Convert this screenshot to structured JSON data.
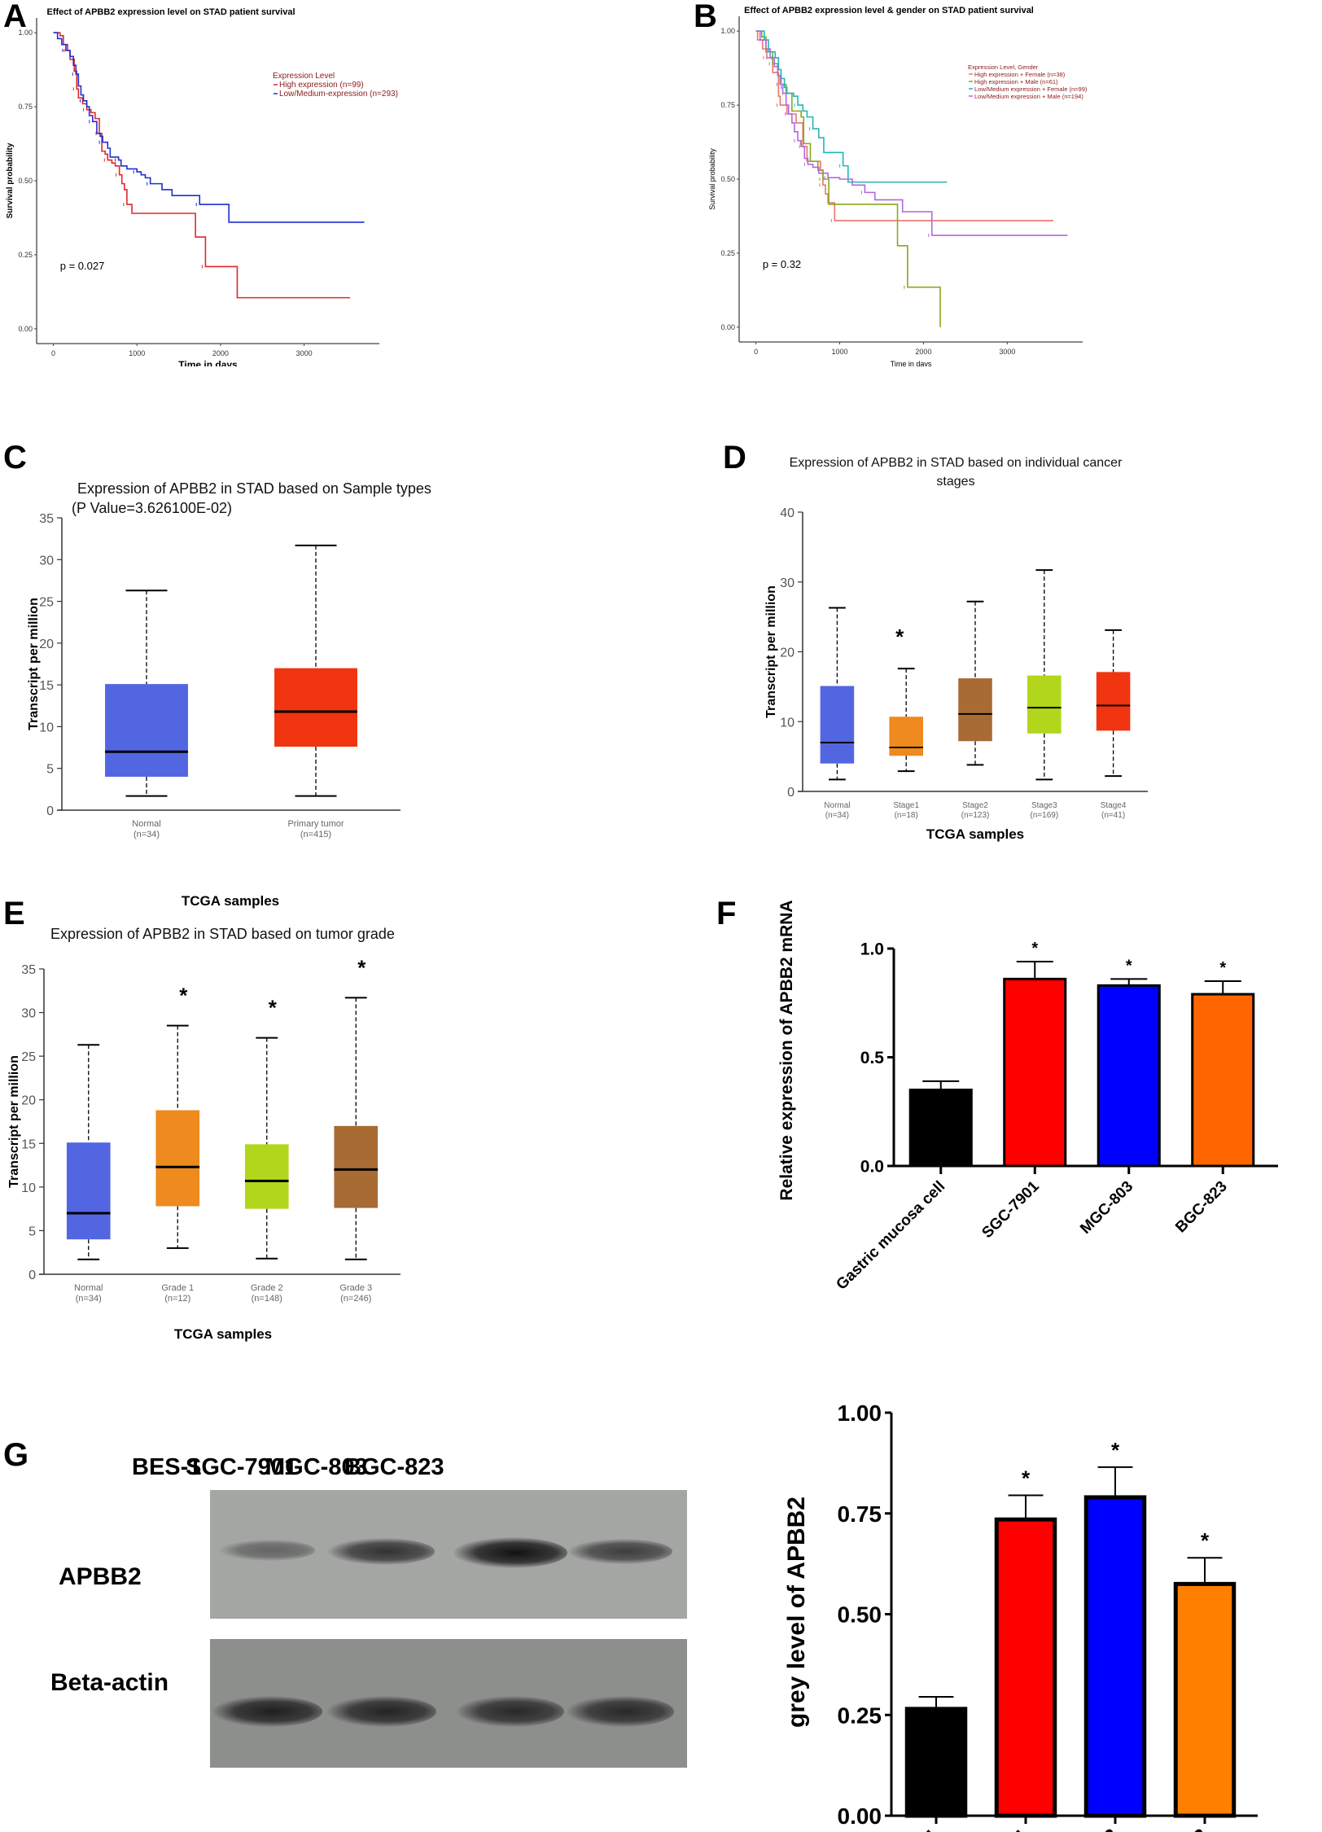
{
  "panels": {
    "A": "A",
    "B": "B",
    "C": "C",
    "D": "D",
    "E": "E",
    "F": "F",
    "G": "G"
  },
  "chart_data": [
    {
      "id": "A",
      "type": "line",
      "subtype": "kaplan-meier",
      "title": "Effect of APBB2 expression level on STAD patient survival",
      "xlabel": "Time in days",
      "ylabel": "Survival probability",
      "xlim": [
        -200,
        3900
      ],
      "ylim": [
        -0.05,
        1.05
      ],
      "xticks": [
        0,
        1000,
        2000,
        3000
      ],
      "yticks": [
        "0.00",
        "0.25",
        "0.50",
        "0.75",
        "1.00"
      ],
      "annotation": "p = 0.027",
      "legend_title": "Expression Level",
      "legend_position": "top-right",
      "series": [
        {
          "name": "High expression (n=99)",
          "color": "#e0282d",
          "steps": [
            [
              0,
              1.0
            ],
            [
              80,
              0.99
            ],
            [
              120,
              0.96
            ],
            [
              170,
              0.94
            ],
            [
              200,
              0.91
            ],
            [
              250,
              0.87
            ],
            [
              280,
              0.81
            ],
            [
              300,
              0.78
            ],
            [
              350,
              0.76
            ],
            [
              400,
              0.74
            ],
            [
              450,
              0.73
            ],
            [
              500,
              0.71
            ],
            [
              550,
              0.66
            ],
            [
              580,
              0.6
            ],
            [
              620,
              0.59
            ],
            [
              650,
              0.57
            ],
            [
              700,
              0.56
            ],
            [
              740,
              0.55
            ],
            [
              790,
              0.52
            ],
            [
              820,
              0.49
            ],
            [
              850,
              0.47
            ],
            [
              880,
              0.42
            ],
            [
              940,
              0.39
            ],
            [
              1700,
              0.31
            ],
            [
              1820,
              0.21
            ],
            [
              2200,
              0.105
            ],
            [
              3550,
              0.105
            ]
          ]
        },
        {
          "name": "Low/Medium-expression (n=293)",
          "color": "#1f2fd0",
          "steps": [
            [
              0,
              1.0
            ],
            [
              50,
              0.98
            ],
            [
              100,
              0.96
            ],
            [
              150,
              0.94
            ],
            [
              200,
              0.92
            ],
            [
              240,
              0.89
            ],
            [
              270,
              0.86
            ],
            [
              300,
              0.82
            ],
            [
              330,
              0.79
            ],
            [
              360,
              0.77
            ],
            [
              400,
              0.75
            ],
            [
              430,
              0.72
            ],
            [
              470,
              0.7
            ],
            [
              520,
              0.66
            ],
            [
              560,
              0.65
            ],
            [
              590,
              0.63
            ],
            [
              650,
              0.61
            ],
            [
              680,
              0.58
            ],
            [
              780,
              0.57
            ],
            [
              810,
              0.55
            ],
            [
              880,
              0.54
            ],
            [
              1000,
              0.53
            ],
            [
              1050,
              0.52
            ],
            [
              1100,
              0.51
            ],
            [
              1160,
              0.49
            ],
            [
              1300,
              0.47
            ],
            [
              1420,
              0.45
            ],
            [
              1750,
              0.42
            ],
            [
              2100,
              0.36
            ],
            [
              3720,
              0.36
            ]
          ]
        }
      ]
    },
    {
      "id": "B",
      "type": "line",
      "subtype": "kaplan-meier",
      "title": "Effect of APBB2 expression level & gender on STAD patient survival",
      "xlabel": "Time in days",
      "ylabel": "Survival probability",
      "xlim": [
        -200,
        3900
      ],
      "ylim": [
        -0.05,
        1.05
      ],
      "xticks": [
        0,
        1000,
        2000,
        3000
      ],
      "yticks": [
        "0.00",
        "0.25",
        "0.50",
        "0.75",
        "1.00"
      ],
      "annotation": "p = 0.32",
      "legend_title": "Expression Level, Gender",
      "legend_position": "top-right",
      "series": [
        {
          "name": "High expression + Female (n=38)",
          "color": "#e8766f",
          "steps": [
            [
              0,
              1.0
            ],
            [
              20,
              0.97
            ],
            [
              80,
              0.94
            ],
            [
              130,
              0.91
            ],
            [
              200,
              0.86
            ],
            [
              270,
              0.78
            ],
            [
              290,
              0.75
            ],
            [
              370,
              0.72
            ],
            [
              480,
              0.69
            ],
            [
              560,
              0.61
            ],
            [
              610,
              0.56
            ],
            [
              770,
              0.53
            ],
            [
              800,
              0.48
            ],
            [
              830,
              0.45
            ],
            [
              860,
              0.42
            ],
            [
              940,
              0.36
            ],
            [
              3550,
              0.36
            ]
          ]
        },
        {
          "name": "High expression + Male (n=61)",
          "color": "#8aa81c",
          "steps": [
            [
              0,
              1.0
            ],
            [
              70,
              0.98
            ],
            [
              120,
              0.93
            ],
            [
              200,
              0.89
            ],
            [
              260,
              0.85
            ],
            [
              300,
              0.82
            ],
            [
              360,
              0.79
            ],
            [
              430,
              0.73
            ],
            [
              540,
              0.71
            ],
            [
              570,
              0.62
            ],
            [
              650,
              0.56
            ],
            [
              740,
              0.53
            ],
            [
              800,
              0.5
            ],
            [
              870,
              0.415
            ],
            [
              1690,
              0.275
            ],
            [
              1810,
              0.135
            ],
            [
              2200,
              0.135
            ],
            [
              2200,
              0.0
            ]
          ]
        },
        {
          "name": "Low/Medium expression + Female (n=99)",
          "color": "#1eb8b7",
          "steps": [
            [
              0,
              1.0
            ],
            [
              100,
              0.97
            ],
            [
              150,
              0.93
            ],
            [
              230,
              0.91
            ],
            [
              270,
              0.87
            ],
            [
              300,
              0.84
            ],
            [
              340,
              0.81
            ],
            [
              370,
              0.79
            ],
            [
              450,
              0.78
            ],
            [
              500,
              0.75
            ],
            [
              560,
              0.73
            ],
            [
              610,
              0.71
            ],
            [
              680,
              0.67
            ],
            [
              750,
              0.64
            ],
            [
              810,
              0.59
            ],
            [
              1040,
              0.545
            ],
            [
              1100,
              0.49
            ],
            [
              2280,
              0.49
            ]
          ]
        },
        {
          "name": "Low/Medium expression + Male (n=194)",
          "color": "#b466e0",
          "steps": [
            [
              0,
              1.0
            ],
            [
              50,
              0.97
            ],
            [
              120,
              0.94
            ],
            [
              170,
              0.91
            ],
            [
              220,
              0.88
            ],
            [
              260,
              0.85
            ],
            [
              290,
              0.82
            ],
            [
              320,
              0.79
            ],
            [
              360,
              0.75
            ],
            [
              390,
              0.72
            ],
            [
              430,
              0.69
            ],
            [
              460,
              0.66
            ],
            [
              500,
              0.63
            ],
            [
              540,
              0.61
            ],
            [
              580,
              0.57
            ],
            [
              620,
              0.55
            ],
            [
              680,
              0.54
            ],
            [
              750,
              0.52
            ],
            [
              860,
              0.505
            ],
            [
              1000,
              0.5
            ],
            [
              1150,
              0.48
            ],
            [
              1300,
              0.455
            ],
            [
              1420,
              0.43
            ],
            [
              1750,
              0.39
            ],
            [
              2100,
              0.31
            ],
            [
              3720,
              0.31
            ]
          ]
        }
      ]
    },
    {
      "id": "C",
      "type": "box",
      "title": "Expression of APBB2 in STAD based on Sample types",
      "subtitle": "(P Value=3.626100E-02)",
      "xlabel": "TCGA samples",
      "ylabel": "Transcript per million",
      "ylim": [
        0,
        35
      ],
      "yticks": [
        0,
        5,
        10,
        15,
        20,
        25,
        30,
        35
      ],
      "groups": [
        {
          "label": "Normal",
          "n": "(n=34)",
          "color": "#5366e2",
          "min": 1.7,
          "q1": 4.0,
          "median": 7.0,
          "q3": 15.1,
          "max": 26.3,
          "star": false
        },
        {
          "label": "Primary tumor",
          "n": "(n=415)",
          "color": "#f03410",
          "min": 1.7,
          "q1": 7.6,
          "median": 11.8,
          "q3": 17.0,
          "max": 31.7,
          "star": false
        }
      ]
    },
    {
      "id": "D",
      "type": "box",
      "title": "Expression of APBB2 in STAD based on individual cancer",
      "subtitle": "stages",
      "xlabel": "TCGA samples",
      "ylabel": "Transcript per million",
      "ylim": [
        0,
        40
      ],
      "yticks": [
        0,
        10,
        20,
        30,
        40
      ],
      "groups": [
        {
          "label": "Normal",
          "n": "(n=34)",
          "color": "#5366e2",
          "min": 1.7,
          "q1": 4.0,
          "median": 7.0,
          "q3": 15.1,
          "max": 26.3,
          "star": false
        },
        {
          "label": "Stage1",
          "n": "(n=18)",
          "color": "#ef8a1e",
          "min": 2.9,
          "q1": 5.1,
          "median": 6.3,
          "q3": 10.7,
          "max": 17.6,
          "star": true
        },
        {
          "label": "Stage2",
          "n": "(n=123)",
          "color": "#a86b34",
          "min": 3.8,
          "q1": 7.2,
          "median": 11.1,
          "q3": 16.2,
          "max": 27.2,
          "star": false
        },
        {
          "label": "Stage3",
          "n": "(n=169)",
          "color": "#b2d61b",
          "min": 1.7,
          "q1": 8.3,
          "median": 12.0,
          "q3": 16.6,
          "max": 31.7,
          "star": false
        },
        {
          "label": "Stage4",
          "n": "(n=41)",
          "color": "#f03410",
          "min": 2.2,
          "q1": 8.7,
          "median": 12.3,
          "q3": 17.1,
          "max": 23.1,
          "star": false
        }
      ]
    },
    {
      "id": "E",
      "type": "box",
      "title": "Expression of APBB2 in STAD based on tumor grade",
      "xlabel": "TCGA samples",
      "ylabel": "Transcript per million",
      "ylim": [
        0,
        35
      ],
      "yticks": [
        0,
        5,
        10,
        15,
        20,
        25,
        30,
        35
      ],
      "groups": [
        {
          "label": "Normal",
          "n": "(n=34)",
          "color": "#5366e2",
          "min": 1.7,
          "q1": 4.0,
          "median": 7.0,
          "q3": 15.1,
          "max": 26.3,
          "star": false
        },
        {
          "label": "Grade 1",
          "n": "(n=12)",
          "color": "#ef8a1e",
          "min": 3.0,
          "q1": 7.8,
          "median": 12.3,
          "q3": 18.8,
          "max": 28.5,
          "star": true
        },
        {
          "label": "Grade 2",
          "n": "(n=148)",
          "color": "#b2d61b",
          "min": 1.8,
          "q1": 7.5,
          "median": 10.7,
          "q3": 14.9,
          "max": 27.1,
          "star": true
        },
        {
          "label": "Grade 3",
          "n": "(n=246)",
          "color": "#a86b34",
          "min": 1.7,
          "q1": 7.6,
          "median": 12.0,
          "q3": 17.0,
          "max": 31.7,
          "star": true
        }
      ]
    },
    {
      "id": "F",
      "type": "bar",
      "title": "",
      "xlabel": "",
      "ylabel": "Relative expression of APBB2 mRNA",
      "ylim": [
        0,
        1.0
      ],
      "yticks": [
        "0.0",
        "0.5",
        "1.0"
      ],
      "categories": [
        "Gastric mucosa cell",
        "SGC-7901",
        "MGC-803",
        "BGC-823"
      ],
      "values": [
        0.35,
        0.86,
        0.83,
        0.79
      ],
      "errors": [
        0.04,
        0.08,
        0.03,
        0.06
      ],
      "colors": [
        "#000000",
        "#ff0000",
        "#0000ff",
        "#ff6600"
      ],
      "significance": [
        "",
        "*",
        "*",
        "*"
      ]
    },
    {
      "id": "G-bar",
      "type": "bar",
      "title": "",
      "xlabel": "",
      "ylabel": "grey level of APBB2",
      "ylim": [
        0,
        1.0
      ],
      "yticks": [
        "0.00",
        "0.25",
        "0.50",
        "0.75",
        "1.00"
      ],
      "categories": [
        "BES-1",
        "SGC-7901",
        "MGC-803",
        "BGC-823"
      ],
      "values": [
        0.265,
        0.735,
        0.79,
        0.575
      ],
      "errors": [
        0.03,
        0.06,
        0.075,
        0.065
      ],
      "colors": [
        "#000000",
        "#ff0000",
        "#0000ff",
        "#ff8000"
      ],
      "significance": [
        "",
        "*",
        "*",
        "*"
      ]
    }
  ],
  "western_blot": {
    "lanes": [
      "BES-1",
      "SGC-7901",
      "MGC-803",
      "BGC-823"
    ],
    "rows": [
      {
        "label": "APBB2",
        "intensities": [
          0.25,
          0.7,
          1.0,
          0.6
        ]
      },
      {
        "label": "Beta-actin",
        "intensities": [
          0.85,
          0.8,
          0.75,
          0.75
        ]
      }
    ]
  }
}
